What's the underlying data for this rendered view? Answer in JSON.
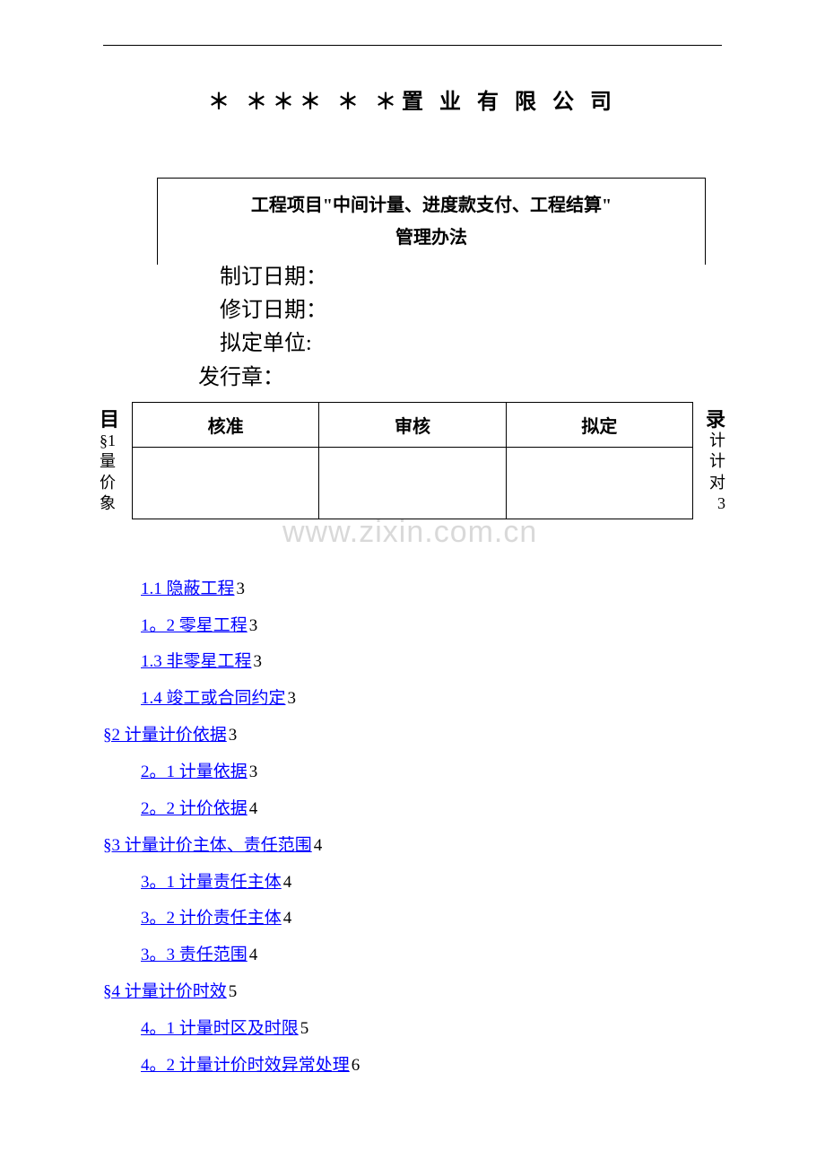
{
  "colors": {
    "background": "#ffffff",
    "text": "#000000",
    "link": "#0000ff",
    "watermark": "#d9d9d9",
    "border": "#000000"
  },
  "typography": {
    "title_fontsize": 24,
    "meta_fontsize": 24,
    "box_fontsize": 20,
    "table_fontsize": 20,
    "toc_fontsize": 19,
    "watermark_fontsize": 34
  },
  "company_title": "＊ ＊＊＊ ＊ ＊置 业 有 限 公 司",
  "box": {
    "line1": "工程项目\"中间计量、进度款支付、工程结算\"",
    "line2": "管理办法"
  },
  "meta": {
    "date_create": "制订日期：",
    "date_revise": "修订日期：",
    "drafter": "拟定单位:",
    "stamp": "发行章："
  },
  "toc_label": {
    "left": "目",
    "right": "录"
  },
  "side_left": {
    "s1": "§1",
    "c1": "量",
    "c2": "价",
    "c3": "象"
  },
  "side_right": {
    "c1": "计",
    "c2": "计",
    "c3": "对",
    "n1": "3"
  },
  "approval": {
    "col1": "核准",
    "col2": "审核",
    "col3": "拟定"
  },
  "watermark": "www.zixin.com.cn",
  "toc": {
    "items": [
      {
        "level": 2,
        "link": "1.1 隐蔽工程",
        "page": "3"
      },
      {
        "level": 2,
        "link": "1。2 零星工程",
        "page": "3"
      },
      {
        "level": 2,
        "link": "1.3 非零星工程",
        "page": "3"
      },
      {
        "level": 2,
        "link": "1.4 竣工或合同约定",
        "page": "3"
      },
      {
        "level": 1,
        "link": "§2 计量计价依据",
        "page": "3"
      },
      {
        "level": 2,
        "link": "2。1 计量依据",
        "page": "3"
      },
      {
        "level": 2,
        "link": "2。2 计价依据",
        "page": "4"
      },
      {
        "level": 1,
        "link": "§3 计量计价主体、责任范围",
        "page": "4"
      },
      {
        "level": 2,
        "link": "3。1 计量责任主体",
        "page": "4"
      },
      {
        "level": 2,
        "link": "3。2 计价责任主体",
        "page": "4"
      },
      {
        "level": 2,
        "link": "3。3 责任范围",
        "page": "4"
      },
      {
        "level": 1,
        "link": "§4 计量计价时效",
        "page": "5"
      },
      {
        "level": 2,
        "link": "4。1 计量时区及时限",
        "page": "5"
      },
      {
        "level": 2,
        "link": "4。2 计量计价时效异常处理",
        "page": "6"
      }
    ]
  }
}
